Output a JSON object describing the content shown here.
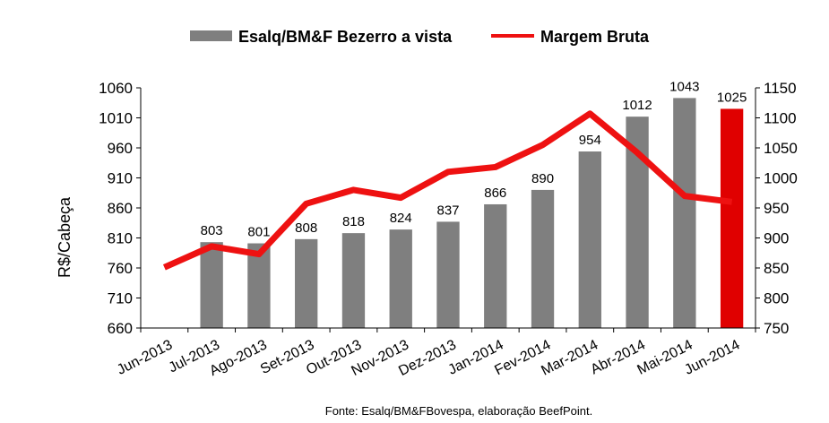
{
  "chart_data": {
    "type": "bar+line",
    "categories": [
      "Jun-2013",
      "Jul-2013",
      "Ago-2013",
      "Set-2013",
      "Out-2013",
      "Nov-2013",
      "Dez-2013",
      "Jan-2014",
      "Fev-2014",
      "Mar-2014",
      "Abr-2014",
      "Mai-2014",
      "Jun-2014"
    ],
    "series": [
      {
        "name": "Esalq/BM&F Bezerro a vista",
        "type": "bar",
        "axis": "left",
        "color": "#7f7f7f",
        "highlight_last_color": "#e00000",
        "values": [
          null,
          803,
          801,
          808,
          818,
          824,
          837,
          866,
          890,
          954,
          1012,
          1043,
          1025
        ],
        "labels": [
          "",
          "803",
          "801",
          "808",
          "818",
          "824",
          "837",
          "866",
          "890",
          "954",
          "1012",
          "1043",
          "1025"
        ]
      },
      {
        "name": "Margem Bruta",
        "type": "line",
        "axis": "right",
        "color": "#ee1111",
        "values": [
          851,
          886,
          873,
          957,
          980,
          967,
          1010,
          1018,
          1055,
          1107,
          1042,
          970,
          960
        ]
      }
    ],
    "ylabel": "R$/Cabeça",
    "y_left": {
      "min": 660,
      "max": 1060,
      "ticks": [
        "660",
        "710",
        "760",
        "810",
        "860",
        "910",
        "960",
        "1010",
        "1060"
      ]
    },
    "y_right": {
      "min": 750,
      "max": 1150,
      "ticks": [
        "750",
        "800",
        "850",
        "900",
        "950",
        "1000",
        "1050",
        "1100",
        "1150"
      ]
    },
    "legend_position": "top",
    "grid": false
  },
  "source": "Fonte: Esalq/BM&FBovespa, elaboração BeefPoint."
}
